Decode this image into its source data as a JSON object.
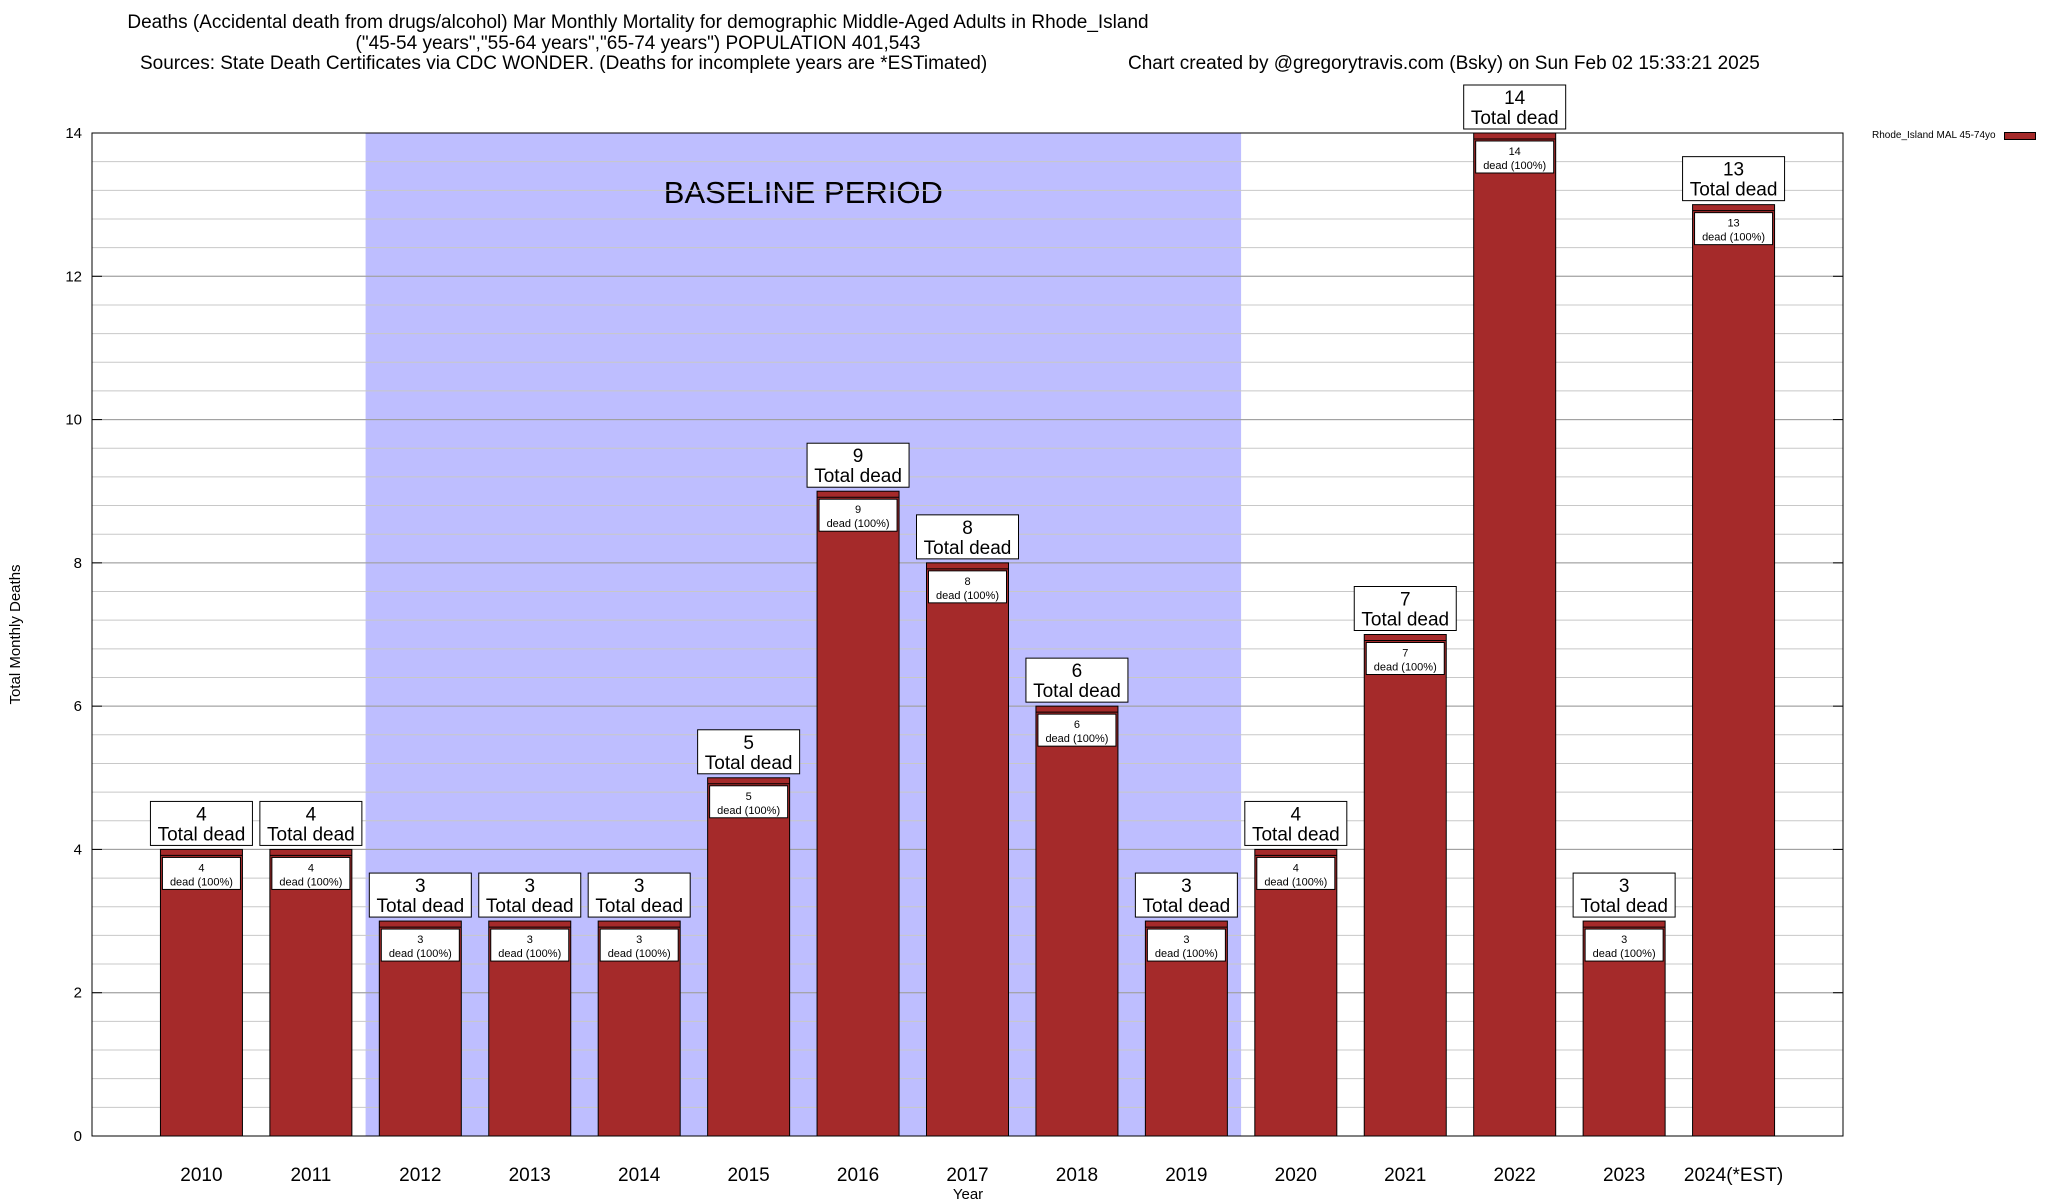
{
  "header": {
    "title_line1": "Deaths (Accidental death from drugs/alcohol) Mar Monthly Mortality for demographic Middle-Aged Adults in Rhode_Island",
    "title_line2": "(\"45-54 years\",\"55-64 years\",\"65-74 years\") POPULATION 401,543",
    "sources": "Sources: State Death Certificates via CDC WONDER. (Deaths for incomplete years are *ESTimated)",
    "credit": "Chart created by @gregorytravis.com (Bsky) on Sun Feb 02 15:33:21 2025"
  },
  "chart_data": {
    "type": "bar",
    "xlabel": "Year",
    "ylabel": "Total Monthly Deaths",
    "ylim": [
      0,
      14
    ],
    "y_major_ticks": [
      0,
      2,
      4,
      6,
      8,
      10,
      12,
      14
    ],
    "y_minor_step": 0.4,
    "categories": [
      "2010",
      "2011",
      "2012",
      "2013",
      "2014",
      "2015",
      "2016",
      "2017",
      "2018",
      "2019",
      "2020",
      "2021",
      "2022",
      "2023",
      "2024(*EST)"
    ],
    "series": [
      {
        "name": "Rhode_Island MAL 45-74yo",
        "color": "#a52a2a",
        "values": [
          4,
          4,
          3,
          3,
          3,
          5,
          9,
          8,
          6,
          3,
          4,
          7,
          14,
          3,
          13
        ]
      }
    ],
    "baseline_region": {
      "label": "BASELINE PERIOD",
      "from_category": "2012",
      "to_category": "2019",
      "color": "#bebeff"
    },
    "total_label_suffix": "Total dead",
    "inner_label_suffix": "dead (100%)",
    "legend_position": "top-right, outside plot",
    "grid": "horizontal"
  }
}
